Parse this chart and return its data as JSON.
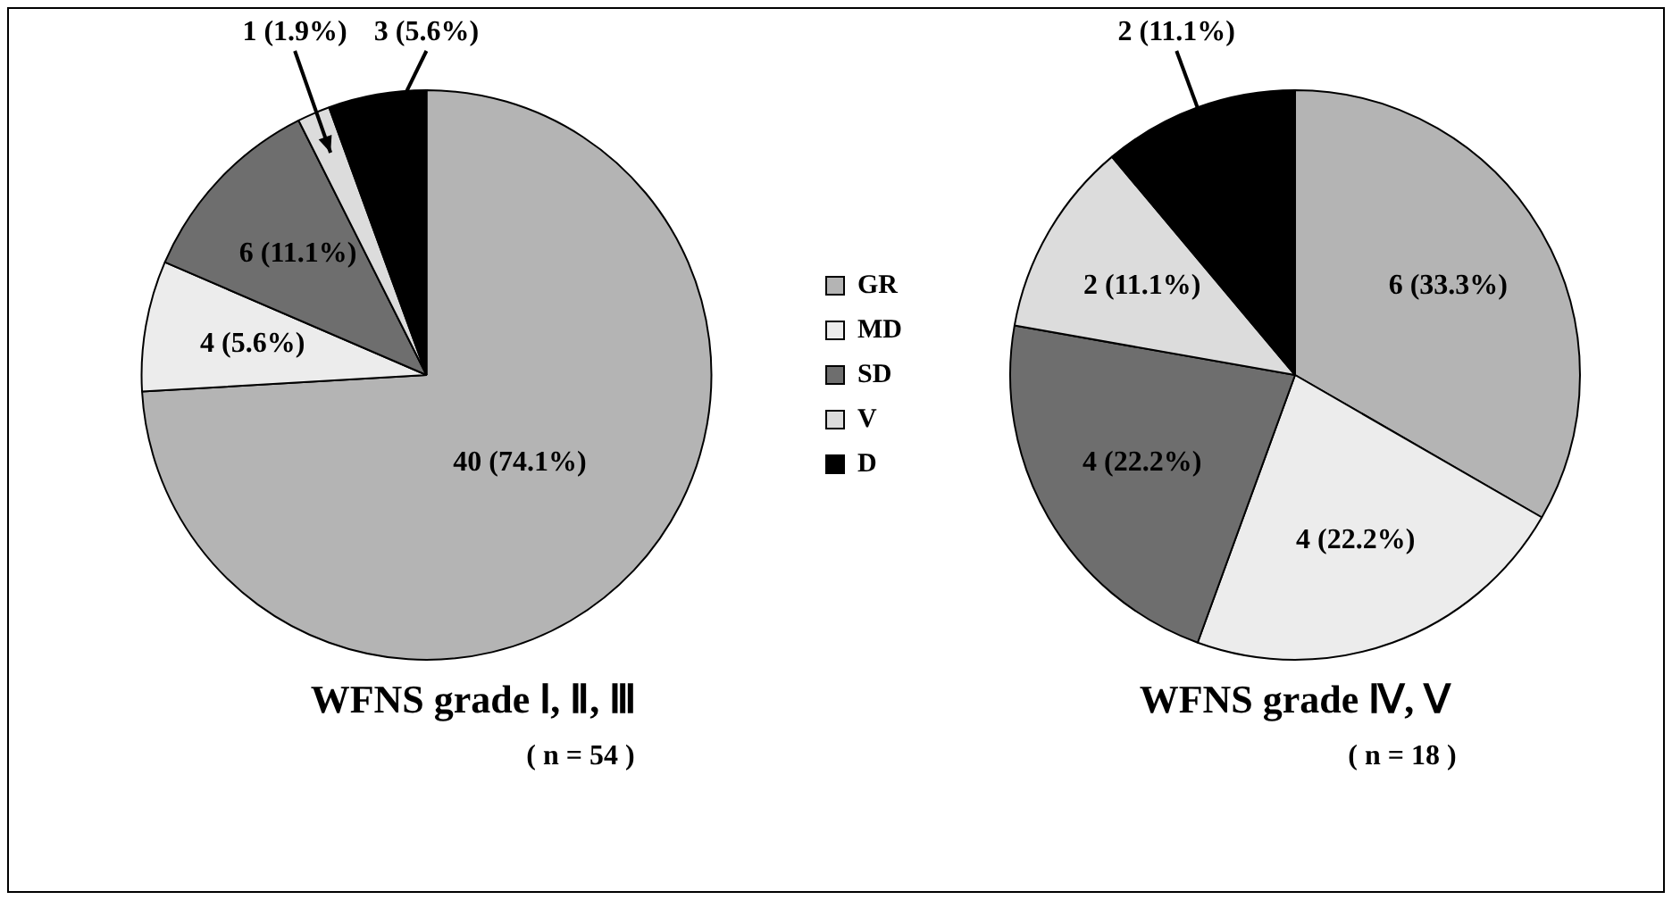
{
  "chart_data": [
    {
      "type": "pie",
      "title": "WFNS grade Ⅰ, Ⅱ, Ⅲ",
      "subtitle": "( n = 54 )",
      "categories": [
        "GR",
        "MD",
        "SD",
        "V",
        "D"
      ],
      "values": [
        40,
        4,
        6,
        1,
        3
      ],
      "colors": [
        "#b4b4b4",
        "#ececec",
        "#6e6e6e",
        "#dcdcdc",
        "#000000"
      ],
      "value_labels": [
        "40 (74.1%)",
        "4 (5.6%)",
        "6 (11.1%)",
        "1 (1.9%)",
        "3 (5.6%)"
      ],
      "legend": "right"
    },
    {
      "type": "pie",
      "title": "WFNS grade Ⅳ, Ⅴ",
      "subtitle": "( n = 18 )",
      "categories": [
        null,
        null,
        null,
        null,
        null
      ],
      "values": [
        6,
        4,
        4,
        2,
        2
      ],
      "colors": [
        "#b4b4b4",
        "#ececec",
        "#6e6e6e",
        "#dcdcdc",
        "#000000"
      ],
      "value_labels": [
        "6 (33.3%)",
        "4 (22.2%)",
        "4 (22.2%)",
        "2 (11.1%)",
        "2 (11.1%)"
      ]
    }
  ]
}
